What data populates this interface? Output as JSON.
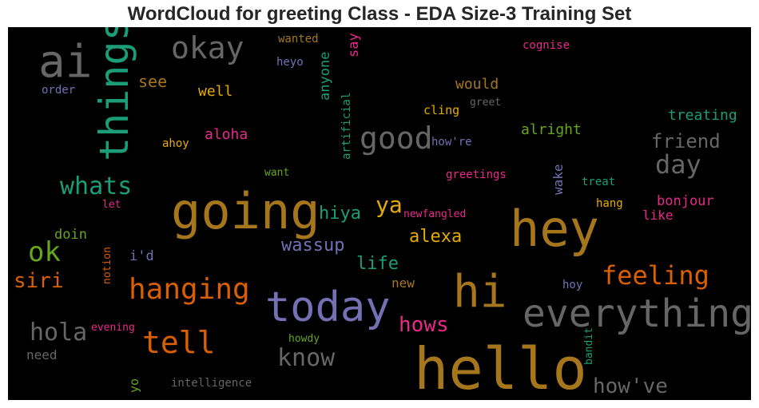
{
  "chart_data": {
    "type": "wordcloud",
    "title": "WordCloud for greeting Class - EDA Size-3 Training Set",
    "background": "#000000",
    "palette": [
      "#1b9e77",
      "#d95f02",
      "#7570b3",
      "#e7298a",
      "#66a61e",
      "#e6ab02",
      "#a6761d",
      "#666666"
    ],
    "words": [
      {
        "text": "hello",
        "color": "#a6761d"
      },
      {
        "text": "going",
        "color": "#a6761d"
      },
      {
        "text": "hey",
        "color": "#a6761d"
      },
      {
        "text": "today",
        "color": "#7570b3"
      },
      {
        "text": "hi",
        "color": "#a6761d"
      },
      {
        "text": "everything",
        "color": "#666666"
      },
      {
        "text": "things",
        "color": "#1b9e77"
      },
      {
        "text": "ai",
        "color": "#666666"
      },
      {
        "text": "good",
        "color": "#666666"
      },
      {
        "text": "hanging",
        "color": "#d95f02"
      },
      {
        "text": "okay",
        "color": "#666666"
      },
      {
        "text": "tell",
        "color": "#d95f02"
      },
      {
        "text": "feeling",
        "color": "#d95f02"
      },
      {
        "text": "whats",
        "color": "#1b9e77"
      },
      {
        "text": "know",
        "color": "#666666"
      },
      {
        "text": "hola",
        "color": "#666666"
      },
      {
        "text": "day",
        "color": "#666666"
      },
      {
        "text": "ok",
        "color": "#66a61e"
      },
      {
        "text": "how've",
        "color": "#666666"
      },
      {
        "text": "siri",
        "color": "#d95f02"
      },
      {
        "text": "hows",
        "color": "#e7298a"
      },
      {
        "text": "ya",
        "color": "#e6ab02"
      },
      {
        "text": "friend",
        "color": "#666666"
      },
      {
        "text": "wassup",
        "color": "#7570b3"
      },
      {
        "text": "alexa",
        "color": "#e6ab02"
      },
      {
        "text": "hiya",
        "color": "#1b9e77"
      },
      {
        "text": "life",
        "color": "#1b9e77"
      },
      {
        "text": "see",
        "color": "#a6761d"
      },
      {
        "text": "treating",
        "color": "#1b9e77"
      },
      {
        "text": "would",
        "color": "#a6761d"
      },
      {
        "text": "alright",
        "color": "#66a61e"
      },
      {
        "text": "well",
        "color": "#e6ab02"
      },
      {
        "text": "aloha",
        "color": "#e7298a"
      },
      {
        "text": "bonjour",
        "color": "#e7298a"
      },
      {
        "text": "anyone",
        "color": "#1b9e77"
      },
      {
        "text": "say",
        "color": "#e7298a"
      },
      {
        "text": "i'd",
        "color": "#7570b3"
      },
      {
        "text": "doin",
        "color": "#66a61e"
      },
      {
        "text": "like",
        "color": "#e7298a"
      },
      {
        "text": "new",
        "color": "#a6761d"
      },
      {
        "text": "wake",
        "color": "#7570b3"
      },
      {
        "text": "need",
        "color": "#666666"
      },
      {
        "text": "yo",
        "color": "#66a61e"
      },
      {
        "text": "cling",
        "color": "#e6ab02"
      },
      {
        "text": "artificial",
        "color": "#1b9e77"
      },
      {
        "text": "greetings",
        "color": "#e7298a"
      },
      {
        "text": "how're",
        "color": "#7570b3"
      },
      {
        "text": "ahoy",
        "color": "#e6ab02"
      },
      {
        "text": "hang",
        "color": "#e6ab02"
      },
      {
        "text": "treat",
        "color": "#1b9e77"
      },
      {
        "text": "hoy",
        "color": "#7570b3"
      },
      {
        "text": "heyo",
        "color": "#7570b3"
      },
      {
        "text": "wanted",
        "color": "#a6761d"
      },
      {
        "text": "cognise",
        "color": "#e7298a"
      },
      {
        "text": "order",
        "color": "#7570b3"
      },
      {
        "text": "greet",
        "color": "#666666"
      },
      {
        "text": "want",
        "color": "#66a61e"
      },
      {
        "text": "newfangled",
        "color": "#e7298a"
      },
      {
        "text": "let",
        "color": "#e7298a"
      },
      {
        "text": "notion",
        "color": "#d95f02"
      },
      {
        "text": "evening",
        "color": "#e7298a"
      },
      {
        "text": "howdy",
        "color": "#66a61e"
      },
      {
        "text": "bandit",
        "color": "#1b9e77"
      },
      {
        "text": "intelligence",
        "color": "#666666"
      }
    ]
  }
}
